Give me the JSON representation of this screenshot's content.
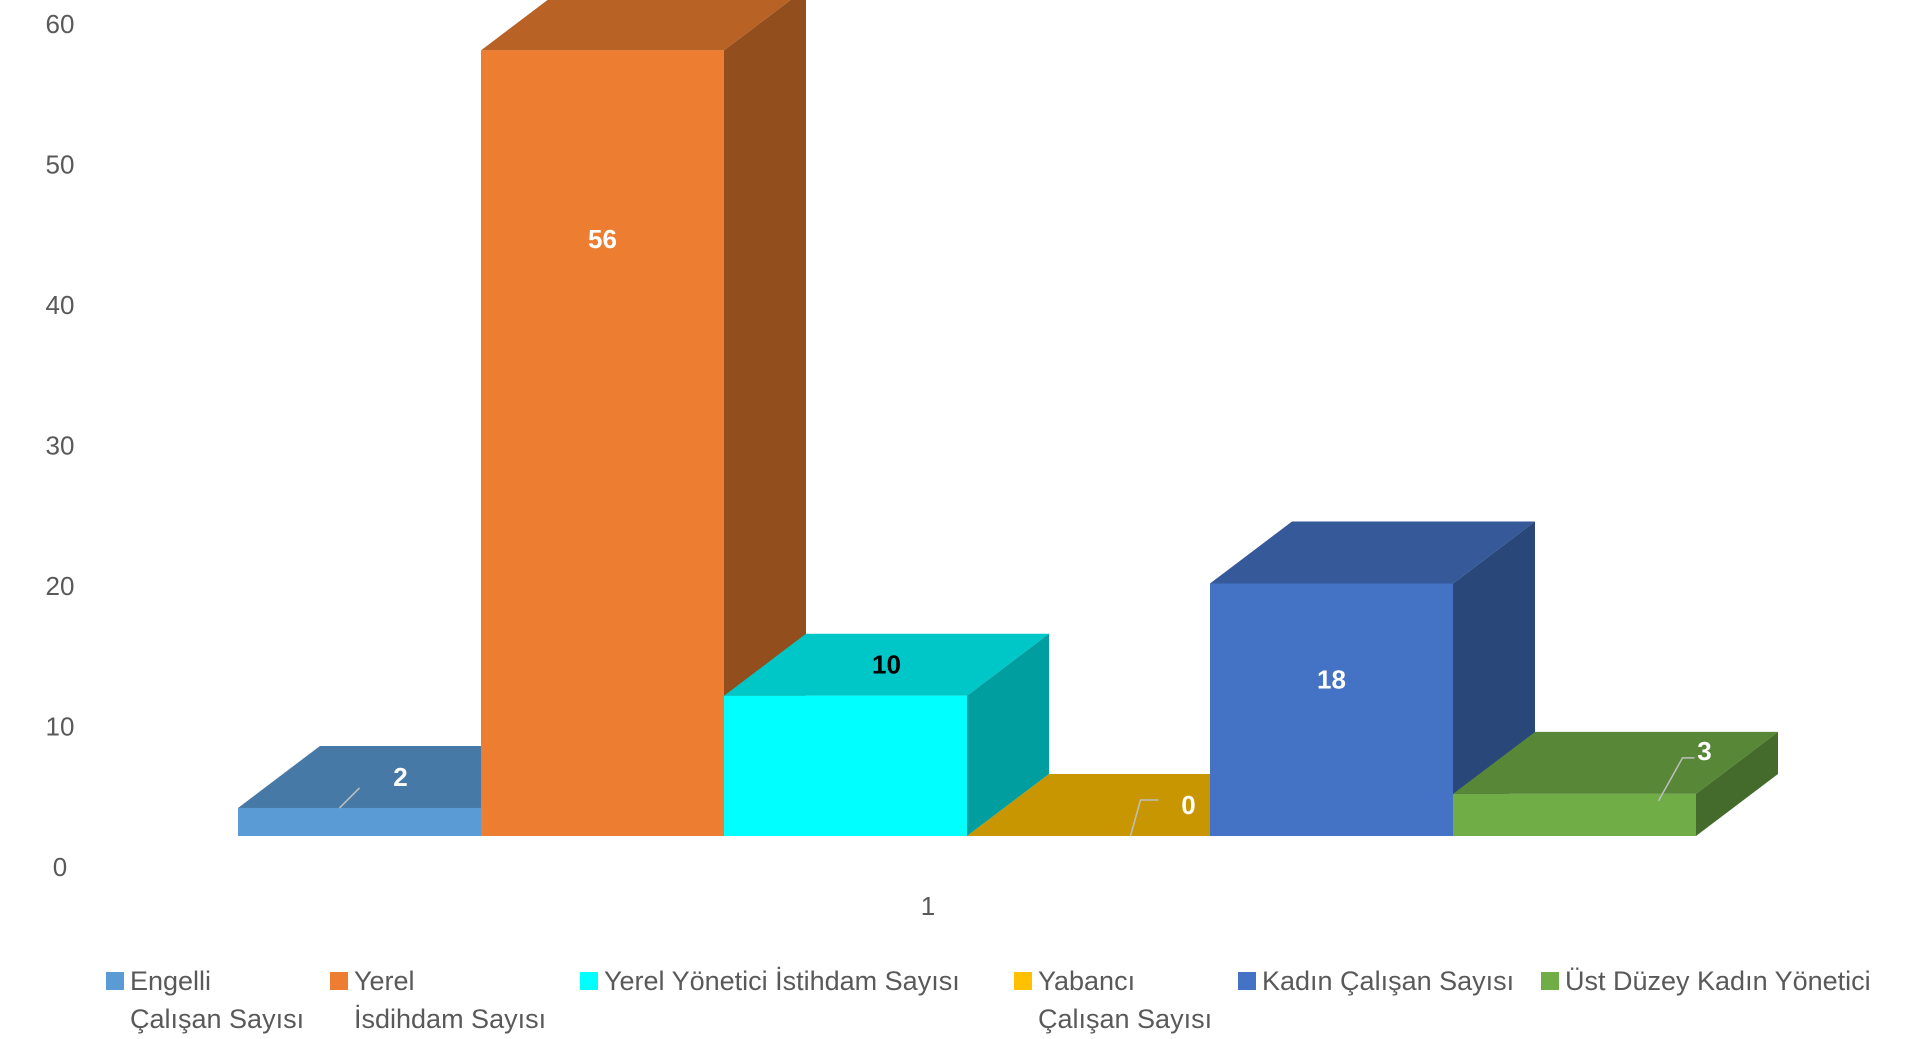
{
  "chart_data": {
    "type": "bar",
    "categories": [
      "1"
    ],
    "series": [
      {
        "name": "Engelli\nÇalışan Sayısı",
        "values": [
          2
        ],
        "color": "#5B9BD5",
        "label_color": "#FFFFFF"
      },
      {
        "name": "Yerel\nİsdihdam Sayısı",
        "values": [
          56
        ],
        "color": "#ED7D31",
        "label_color": "#FFFFFF"
      },
      {
        "name": "Yerel Yönetici İstihdam Sayısı",
        "values": [
          10
        ],
        "color": "#00FFFF",
        "label_color": "#000000"
      },
      {
        "name": "Yabancı\nÇalışan Sayısı",
        "values": [
          0
        ],
        "color": "#FFC000",
        "label_color": "#FFFFFF"
      },
      {
        "name": "Kadın Çalışan Sayısı",
        "values": [
          18
        ],
        "color": "#4472C4",
        "label_color": "#FFFFFF"
      },
      {
        "name": "Üst Düzey Kadın Yönetici",
        "values": [
          3
        ],
        "color": "#70AD47",
        "label_color": "#FFFFFF"
      }
    ],
    "y_ticks": [
      "0",
      "10",
      "20",
      "30",
      "40",
      "50",
      "60"
    ],
    "x_tick_labels": [
      "1"
    ],
    "ylim": [
      0,
      60
    ],
    "three_d": true,
    "gridlines": false,
    "legend_position": "bottom"
  }
}
